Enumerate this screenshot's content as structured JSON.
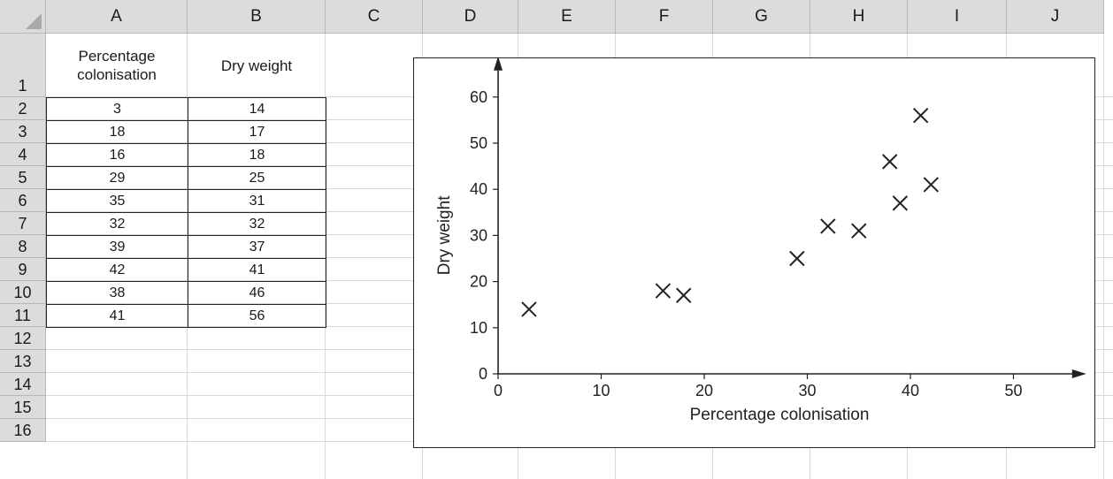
{
  "sheet": {
    "columns": [
      "A",
      "B",
      "C",
      "D",
      "E",
      "F",
      "G",
      "H",
      "I",
      "J"
    ],
    "rows": [
      "1",
      "2",
      "3",
      "4",
      "5",
      "6",
      "7",
      "8",
      "9",
      "10",
      "11",
      "12",
      "13",
      "14",
      "15",
      "16"
    ],
    "header_a": "Percentage colonisation",
    "header_b": "Dry weight",
    "table": [
      [
        "3",
        "14"
      ],
      [
        "18",
        "17"
      ],
      [
        "16",
        "18"
      ],
      [
        "29",
        "25"
      ],
      [
        "35",
        "31"
      ],
      [
        "32",
        "32"
      ],
      [
        "39",
        "37"
      ],
      [
        "42",
        "41"
      ],
      [
        "38",
        "46"
      ],
      [
        "41",
        "56"
      ]
    ]
  },
  "chart_data": {
    "type": "scatter",
    "xlabel": "Percentage colonisation",
    "ylabel": "Dry weight",
    "xlim": [
      0,
      55
    ],
    "ylim": [
      0,
      65
    ],
    "xticks": [
      0,
      10,
      20,
      30,
      40,
      50
    ],
    "yticks": [
      0,
      10,
      20,
      30,
      40,
      50,
      60
    ],
    "grid": false,
    "marker": "x",
    "points": [
      {
        "x": 3,
        "y": 14
      },
      {
        "x": 18,
        "y": 17
      },
      {
        "x": 16,
        "y": 18
      },
      {
        "x": 29,
        "y": 25
      },
      {
        "x": 35,
        "y": 31
      },
      {
        "x": 32,
        "y": 32
      },
      {
        "x": 39,
        "y": 37
      },
      {
        "x": 42,
        "y": 41
      },
      {
        "x": 38,
        "y": 46
      },
      {
        "x": 41,
        "y": 56
      }
    ]
  }
}
